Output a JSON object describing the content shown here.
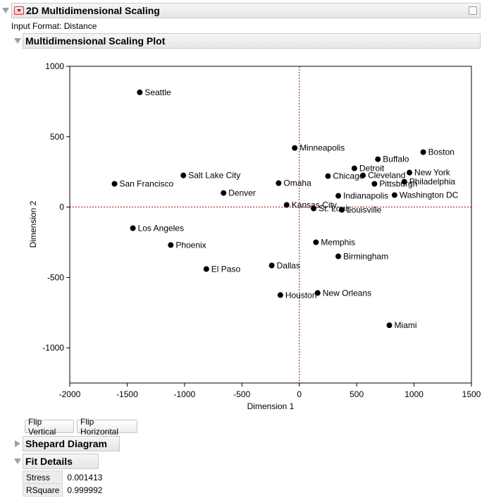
{
  "report": {
    "title": "2D Multidimensional Scaling",
    "input_format": "Input Format: Distance"
  },
  "plot_section": {
    "title": "Multidimensional Scaling Plot"
  },
  "buttons": {
    "flip_vertical": "Flip Vertical",
    "flip_horizontal": "Flip Horizontal"
  },
  "shepard": {
    "title": "Shepard Diagram"
  },
  "fit_details": {
    "title": "Fit Details",
    "rows": [
      {
        "label": "Stress",
        "value": "0.001413"
      },
      {
        "label": "RSquare",
        "value": "0.999992"
      }
    ]
  },
  "chart_data": {
    "type": "scatter",
    "xlabel": "Dimension 1",
    "ylabel": "Dimension 2",
    "xlim": [
      -2000,
      1500
    ],
    "ylim": [
      -1250,
      1000
    ],
    "x_ticks": [
      -2000,
      -1500,
      -1000,
      -500,
      0,
      500,
      1000,
      1500
    ],
    "y_ticks": [
      1000,
      500,
      0,
      -500,
      -1000
    ],
    "reference_lines": {
      "x": 0,
      "y": 0,
      "color": "#c00000"
    },
    "grid": false,
    "points": [
      {
        "label": "Seattle",
        "x": -1390,
        "y": 815
      },
      {
        "label": "Minneapolis",
        "x": -40,
        "y": 420
      },
      {
        "label": "Boston",
        "x": 1080,
        "y": 390
      },
      {
        "label": "Buffalo",
        "x": 685,
        "y": 340
      },
      {
        "label": "Detroit",
        "x": 480,
        "y": 275
      },
      {
        "label": "New York",
        "x": 960,
        "y": 245
      },
      {
        "label": "Chicago",
        "x": 250,
        "y": 220
      },
      {
        "label": "Cleveland",
        "x": 555,
        "y": 225
      },
      {
        "label": "Philadelphia",
        "x": 915,
        "y": 180
      },
      {
        "label": "Pittsburgh",
        "x": 655,
        "y": 165
      },
      {
        "label": "Salt Lake City",
        "x": -1010,
        "y": 225
      },
      {
        "label": "San Francisco",
        "x": -1610,
        "y": 165
      },
      {
        "label": "Omaha",
        "x": -180,
        "y": 170
      },
      {
        "label": "Denver",
        "x": -660,
        "y": 100
      },
      {
        "label": "Indianapolis",
        "x": 340,
        "y": 80
      },
      {
        "label": "Washington DC",
        "x": 830,
        "y": 85
      },
      {
        "label": "Kansas City",
        "x": -110,
        "y": 15
      },
      {
        "label": "St. Louis",
        "x": 125,
        "y": -10
      },
      {
        "label": "Louisville",
        "x": 370,
        "y": -20
      },
      {
        "label": "Los Angeles",
        "x": -1450,
        "y": -150
      },
      {
        "label": "Phoenix",
        "x": -1120,
        "y": -270
      },
      {
        "label": "Memphis",
        "x": 145,
        "y": -250
      },
      {
        "label": "Birmingham",
        "x": 340,
        "y": -350
      },
      {
        "label": "El Paso",
        "x": -810,
        "y": -440
      },
      {
        "label": "Dallas",
        "x": -240,
        "y": -415
      },
      {
        "label": "Houston",
        "x": -165,
        "y": -625
      },
      {
        "label": "New Orleans",
        "x": 160,
        "y": -610
      },
      {
        "label": "Miami",
        "x": 785,
        "y": -840
      }
    ]
  }
}
